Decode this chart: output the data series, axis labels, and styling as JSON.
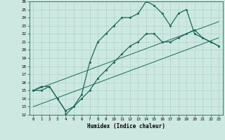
{
  "xlabel": "Humidex (Indice chaleur)",
  "xlim": [
    -0.5,
    23.5
  ],
  "ylim": [
    12,
    26
  ],
  "xticks": [
    0,
    1,
    2,
    3,
    4,
    5,
    6,
    7,
    8,
    9,
    10,
    11,
    12,
    13,
    14,
    15,
    16,
    17,
    18,
    19,
    20,
    21,
    22,
    23
  ],
  "yticks": [
    12,
    13,
    14,
    15,
    16,
    17,
    18,
    19,
    20,
    21,
    22,
    23,
    24,
    25,
    26
  ],
  "bg_color": "#cce8e0",
  "grid_color": "#b0d8cf",
  "line_color": "#1a6b5a",
  "line1_x": [
    0,
    1,
    2,
    3,
    4,
    4,
    5,
    6,
    7,
    8,
    9,
    10,
    11,
    12,
    13,
    14,
    15,
    16,
    17,
    18,
    19,
    20,
    21,
    22,
    23
  ],
  "line1_y": [
    15,
    15.5,
    15.5,
    14,
    12.5,
    12,
    13,
    14.5,
    18.5,
    21,
    22,
    23,
    24,
    24,
    24.5,
    26,
    25.5,
    24.5,
    23,
    24.5,
    25,
    22,
    21.5,
    21,
    20.5
  ],
  "line2_x": [
    0,
    1,
    2,
    3,
    4,
    5,
    6,
    7,
    8,
    9,
    10,
    11,
    12,
    13,
    14,
    15,
    16,
    17,
    18,
    19,
    20,
    21,
    22,
    23
  ],
  "line2_y": [
    15,
    15,
    15.5,
    14,
    12.5,
    13,
    14,
    15,
    16.5,
    17.5,
    18.5,
    19.5,
    20.5,
    21,
    22,
    22,
    21,
    21,
    21.5,
    22,
    22.5,
    21.5,
    21,
    20.5
  ],
  "line3_x": [
    0,
    23
  ],
  "line3_y": [
    15,
    23.5
  ],
  "line4_x": [
    0,
    23
  ],
  "line4_y": [
    13,
    21.5
  ]
}
